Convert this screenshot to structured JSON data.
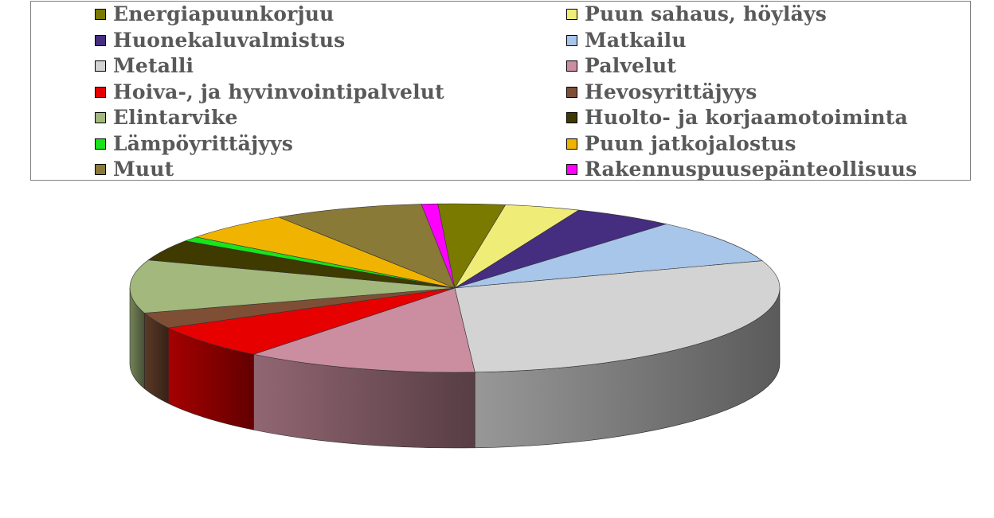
{
  "chart_data": {
    "type": "pie",
    "style": "3d",
    "legend_position": "top",
    "series": [
      {
        "name": "Energiapuunkorjuu",
        "value": 3.3,
        "color": "#7a7a00"
      },
      {
        "name": "Puun sahaus, höyläys",
        "value": 3.7,
        "color": "#f0ec78"
      },
      {
        "name": "Huonekaluvalmistus",
        "value": 5.0,
        "color": "#452d7f"
      },
      {
        "name": "Matkailu",
        "value": 8.4,
        "color": "#a8c5ea"
      },
      {
        "name": "Metalli",
        "value": 29.0,
        "color": "#d3d3d3"
      },
      {
        "name": "Palvelut",
        "value": 11.5,
        "color": "#ca8ea0"
      },
      {
        "name": "Hoiva-, ja hyvinvointipalvelut",
        "value": 6.5,
        "color": "#e60000"
      },
      {
        "name": "Hevosyrittäjyys",
        "value": 3.0,
        "color": "#7e4f35"
      },
      {
        "name": "Elintarvike",
        "value": 10.1,
        "color": "#a3b87c"
      },
      {
        "name": "Huolto- ja korjaamotoiminta",
        "value": 4.0,
        "color": "#3e3a00"
      },
      {
        "name": "Lämpöyrittäjyys",
        "value": 0.9,
        "color": "#19e319"
      },
      {
        "name": "Puun jatkojalostus",
        "value": 5.5,
        "color": "#f0b400"
      },
      {
        "name": "Muut",
        "value": 7.4,
        "color": "#8a7a38"
      },
      {
        "name": "Rakennuspuusepänteollisuus",
        "value": 0.8,
        "color": "#ff00ff"
      }
    ]
  },
  "legend": {
    "left_column": [
      {
        "label": "Energiapuunkorjuu",
        "color": "#7a7a00"
      },
      {
        "label": "Huonekaluvalmistus",
        "color": "#452d7f"
      },
      {
        "label": "Metalli",
        "color": "#d3d3d3"
      },
      {
        "label": "Hoiva-, ja hyvinvointipalvelut",
        "color": "#e60000"
      },
      {
        "label": "Elintarvike",
        "color": "#a3b87c"
      },
      {
        "label": "Lämpöyrittäjyys",
        "color": "#19e319"
      },
      {
        "label": "Muut",
        "color": "#8a7a38"
      }
    ],
    "right_column": [
      {
        "label": "Puun sahaus, höyläys",
        "color": "#f0ec78"
      },
      {
        "label": "Matkailu",
        "color": "#a8c5ea"
      },
      {
        "label": "Palvelut",
        "color": "#ca8ea0"
      },
      {
        "label": "Hevosyrittäjyys",
        "color": "#7e4f35"
      },
      {
        "label": "Huolto- ja korjaamotoiminta",
        "color": "#3e3a00"
      },
      {
        "label": "Puun jatkojalostus",
        "color": "#f0b400"
      },
      {
        "label": "Rakennuspuusepänteollisuus",
        "color": "#ff00ff"
      }
    ]
  }
}
